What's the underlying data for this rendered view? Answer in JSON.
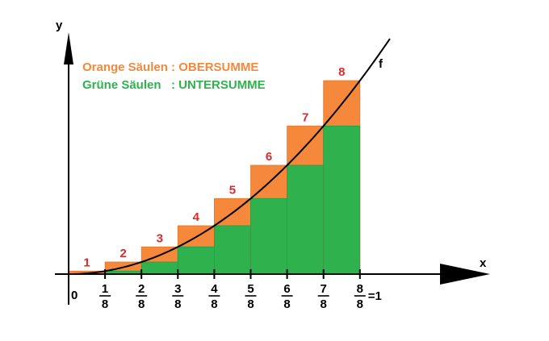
{
  "chart_data": {
    "type": "bar",
    "function": "x^2",
    "function_label": "f",
    "xlabel": "x",
    "ylabel": "y",
    "origin_label": "0",
    "n": 8,
    "x_ticks": [
      {
        "num": "1",
        "den": "8"
      },
      {
        "num": "2",
        "den": "8"
      },
      {
        "num": "3",
        "den": "8"
      },
      {
        "num": "4",
        "den": "8"
      },
      {
        "num": "5",
        "den": "8"
      },
      {
        "num": "6",
        "den": "8"
      },
      {
        "num": "7",
        "den": "8"
      },
      {
        "num": "8",
        "den": "8"
      }
    ],
    "last_tick_suffix": "=1",
    "rect_labels": [
      "1",
      "2",
      "3",
      "4",
      "5",
      "6",
      "7",
      "8"
    ],
    "x": [
      0.125,
      0.25,
      0.375,
      0.5,
      0.625,
      0.75,
      0.875,
      1.0
    ],
    "series": [
      {
        "name": "Orange Säulen : OBERSUMME",
        "values": [
          0.015625,
          0.0625,
          0.140625,
          0.25,
          0.390625,
          0.5625,
          0.765625,
          1.0
        ]
      },
      {
        "name": "Grüne Säulen   : UNTERSUMME",
        "values": [
          0,
          0.015625,
          0.0625,
          0.140625,
          0.25,
          0.390625,
          0.5625,
          0.765625
        ]
      }
    ],
    "legend": {
      "upper": "Orange Säulen : OBERSUMME",
      "lower": "Grüne Säulen   : UNTERSUMME"
    },
    "colors": {
      "upper": "#f5883a",
      "lower": "#2fb14d",
      "rect_label": "#d92b2b",
      "curve": "#000000"
    }
  }
}
